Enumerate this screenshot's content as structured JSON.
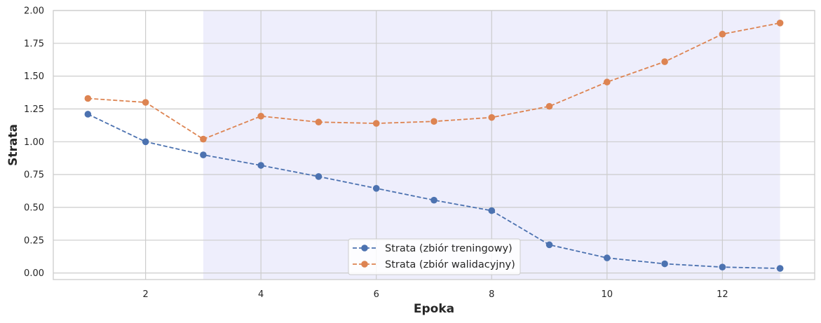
{
  "chart_data": {
    "type": "line",
    "xlabel": "Epoka",
    "ylabel": "Strata",
    "xlim": [
      0.4,
      13.6
    ],
    "ylim": [
      -0.05,
      2.0
    ],
    "xticks": [
      2,
      4,
      6,
      8,
      10,
      12
    ],
    "yticks": [
      0.0,
      0.25,
      0.5,
      0.75,
      1.0,
      1.25,
      1.5,
      1.75,
      2.0
    ],
    "ytick_labels": [
      "0.00",
      "0.25",
      "0.50",
      "0.75",
      "1.00",
      "1.25",
      "1.50",
      "1.75",
      "2.00"
    ],
    "grid": true,
    "shaded_region": {
      "x_start": 3,
      "x_end": 13,
      "color": "#eeeefc"
    },
    "legend_position": "bottom-center",
    "x": [
      1,
      2,
      3,
      4,
      5,
      6,
      7,
      8,
      9,
      10,
      11,
      12,
      13
    ],
    "series": [
      {
        "name": "Strata (zbiór treningowy)",
        "color": "#4c72b0",
        "linestyle": "dashed",
        "marker": "circle",
        "values": [
          1.21,
          1.0,
          0.9,
          0.82,
          0.735,
          0.645,
          0.555,
          0.475,
          0.215,
          0.115,
          0.07,
          0.045,
          0.035
        ]
      },
      {
        "name": "Strata (zbiór walidacyjny)",
        "color": "#dd8452",
        "linestyle": "dashed",
        "marker": "circle",
        "values": [
          1.33,
          1.3,
          1.02,
          1.195,
          1.15,
          1.14,
          1.155,
          1.185,
          1.27,
          1.455,
          1.61,
          1.82,
          1.905
        ]
      }
    ]
  }
}
